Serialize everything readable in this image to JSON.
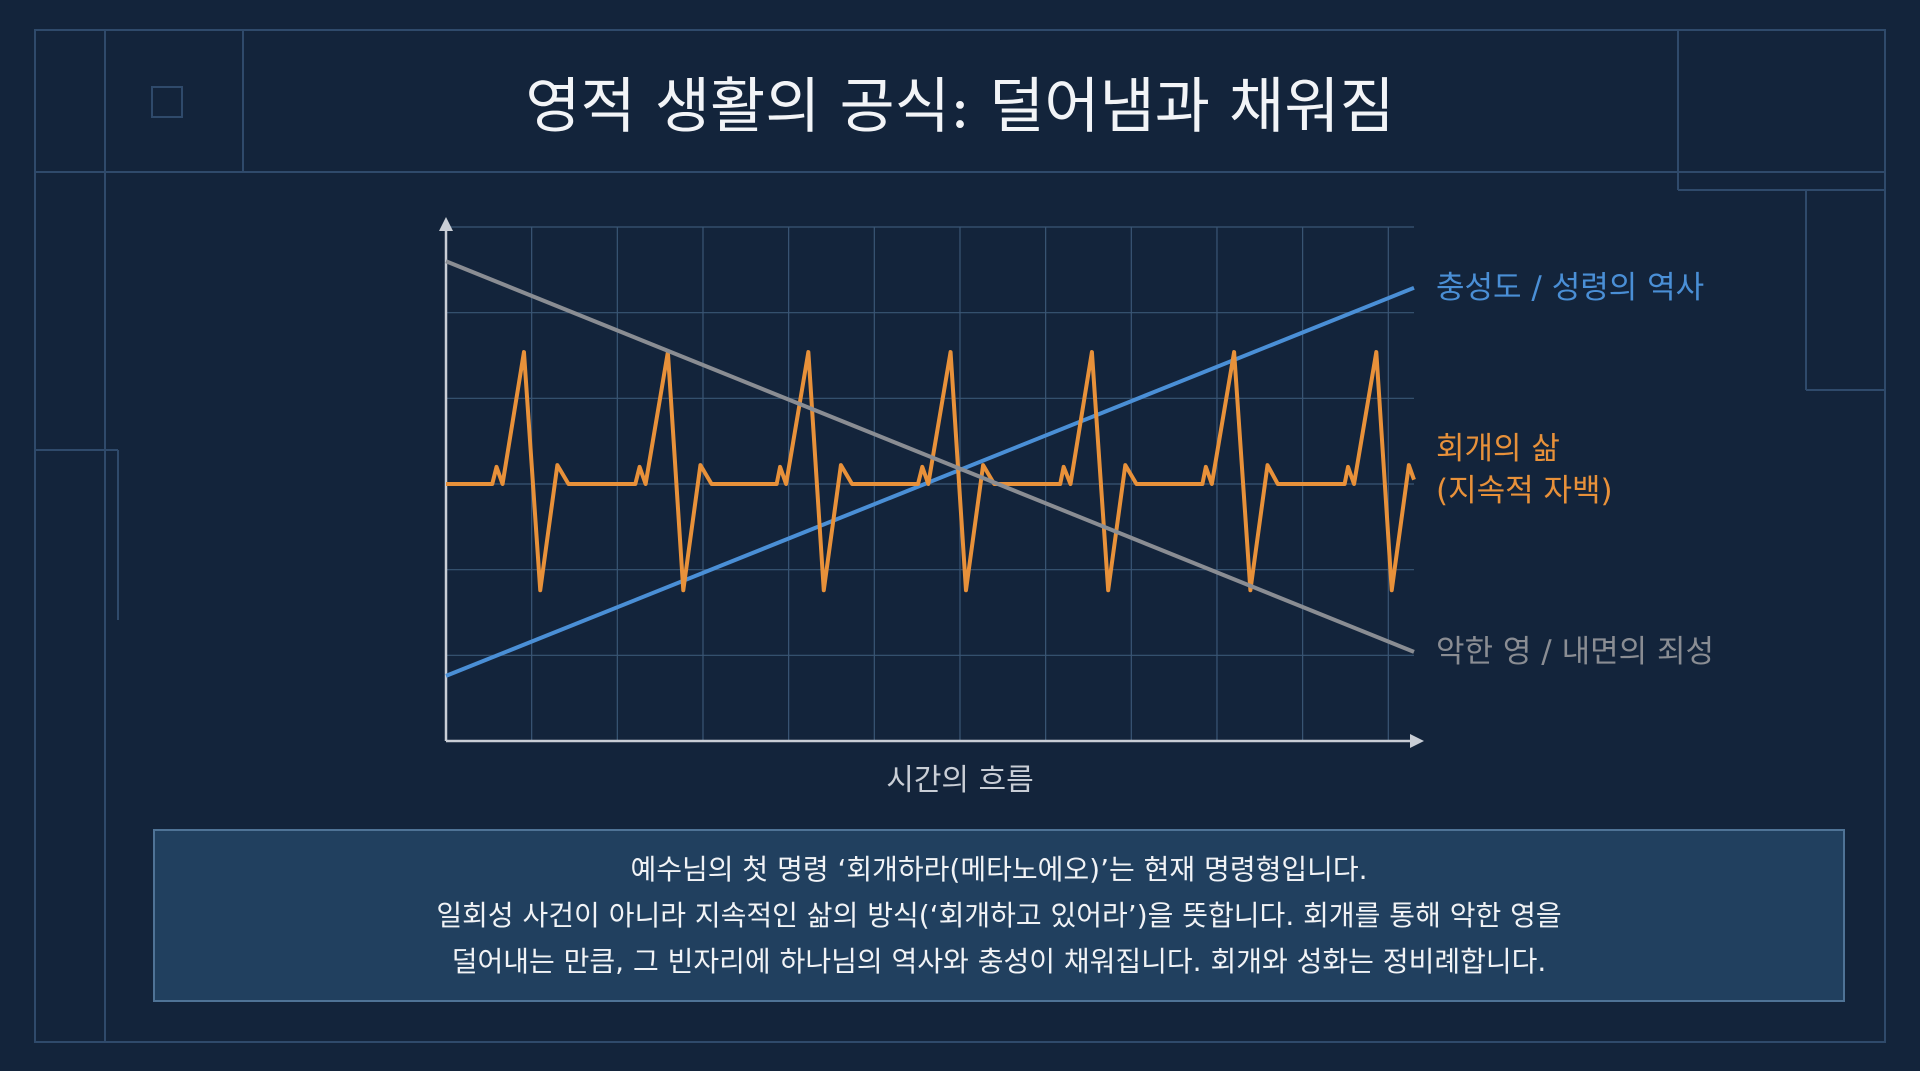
{
  "chart_data": {
    "type": "line",
    "title": "영적 생활의 공식: 덜어냄과 채워짐",
    "x_label": "시간의 흐름",
    "xlim": [
      0,
      11.3
    ],
    "ylim": [
      0,
      6
    ],
    "xticks": [
      0,
      1,
      2,
      3,
      4,
      5,
      6,
      7,
      8,
      9,
      10,
      11
    ],
    "yticks": [
      0,
      1,
      2,
      3,
      4,
      5,
      6
    ],
    "grid": true,
    "series": [
      {
        "name": "충성도 / 성령의 역사",
        "color": "#4a8fd6",
        "x": [
          0,
          11.3
        ],
        "values": [
          0.76,
          5.29
        ]
      },
      {
        "name": "회개의 삶\n(지속적 자백)",
        "color": "#e8913a",
        "x": [
          0,
          0.54,
          0.59,
          0.66,
          0.91,
          1.1,
          1.3,
          1.43,
          2.21,
          2.26,
          2.33,
          2.59,
          2.77,
          2.97,
          3.1,
          3.86,
          3.9,
          3.97,
          4.23,
          4.41,
          4.61,
          4.74,
          5.51,
          5.56,
          5.63,
          5.89,
          6.07,
          6.27,
          6.4,
          7.17,
          7.21,
          7.29,
          7.54,
          7.73,
          7.93,
          8.06,
          8.83,
          8.87,
          8.94,
          9.2,
          9.39,
          9.59,
          9.71,
          10.49,
          10.53,
          10.6,
          10.86,
          11.04,
          11.24,
          11.3
        ],
        "values": [
          3,
          3,
          3.2,
          3,
          4.54,
          1.76,
          3.22,
          3,
          3,
          3.2,
          3,
          4.54,
          1.76,
          3.22,
          3,
          3,
          3.2,
          3,
          4.54,
          1.76,
          3.22,
          3,
          3,
          3.2,
          3,
          4.54,
          1.76,
          3.22,
          3,
          3,
          3.2,
          3,
          4.54,
          1.76,
          3.22,
          3,
          3,
          3.2,
          3,
          4.54,
          1.76,
          3.22,
          3,
          3,
          3.2,
          3,
          4.54,
          1.76,
          3.22,
          3.05
        ]
      },
      {
        "name": "악한 영 / 내면의 죄성",
        "color": "#8a8d93",
        "x": [
          0,
          11.3
        ],
        "values": [
          5.6,
          1.04
        ]
      }
    ]
  },
  "caption": [
    "예수님의 첫 명령 ‘회개하라(메타노에오)’는 현재 명령형입니다.",
    "일회성 사건이 아니라 지속적인 삶의 방식(‘회개하고 있어라’)을 뜻합니다. 회개를 통해 악한 영을",
    "덜어내는 만큼, 그 빈자리에 하나님의 역사와 충성이 채워집니다. 회개와 성화는 정비례합니다."
  ]
}
